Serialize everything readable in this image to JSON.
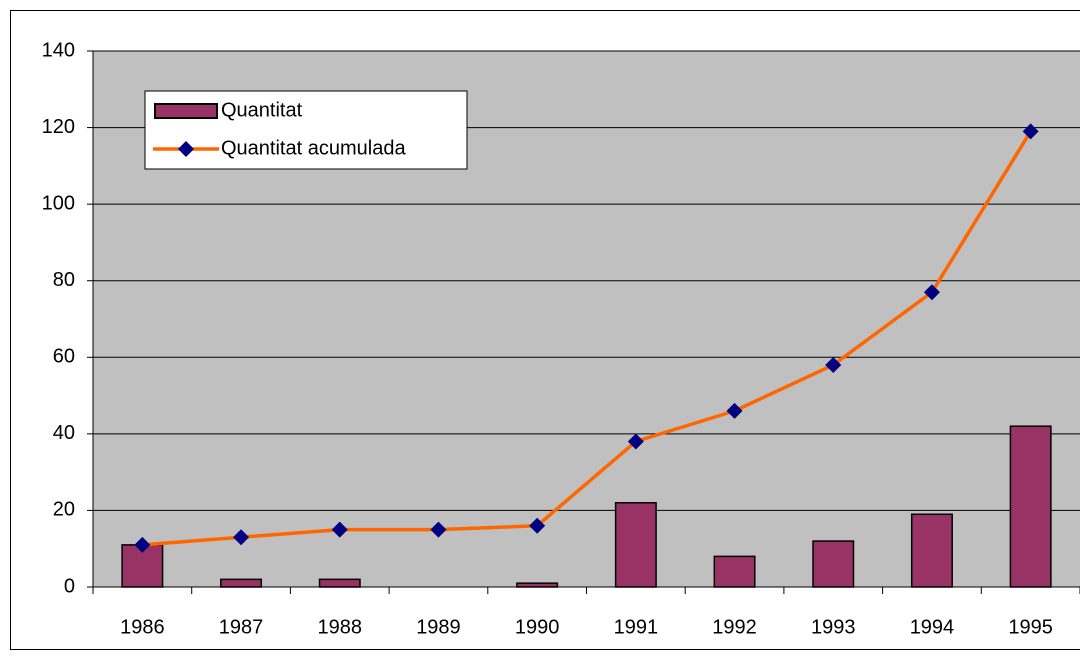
{
  "chart_data": {
    "type": "bar",
    "categories": [
      "1986",
      "1987",
      "1988",
      "1989",
      "1990",
      "1991",
      "1992",
      "1993",
      "1994",
      "1995"
    ],
    "series": [
      {
        "name": "Quantitat",
        "type": "bar",
        "color": "#993366",
        "values": [
          11,
          2,
          2,
          0,
          1,
          22,
          8,
          12,
          19,
          42
        ]
      },
      {
        "name": "Quantitat acumulada",
        "type": "line",
        "color": "#ff6600",
        "marker_color": "#000080",
        "values": [
          11,
          13,
          15,
          15,
          16,
          38,
          46,
          58,
          77,
          119
        ]
      }
    ],
    "ylim": [
      0,
      140
    ],
    "yticks": [
      0,
      20,
      40,
      60,
      80,
      100,
      120,
      140
    ],
    "grid": true,
    "legend": "upper left",
    "background": "#c0c0c0"
  }
}
